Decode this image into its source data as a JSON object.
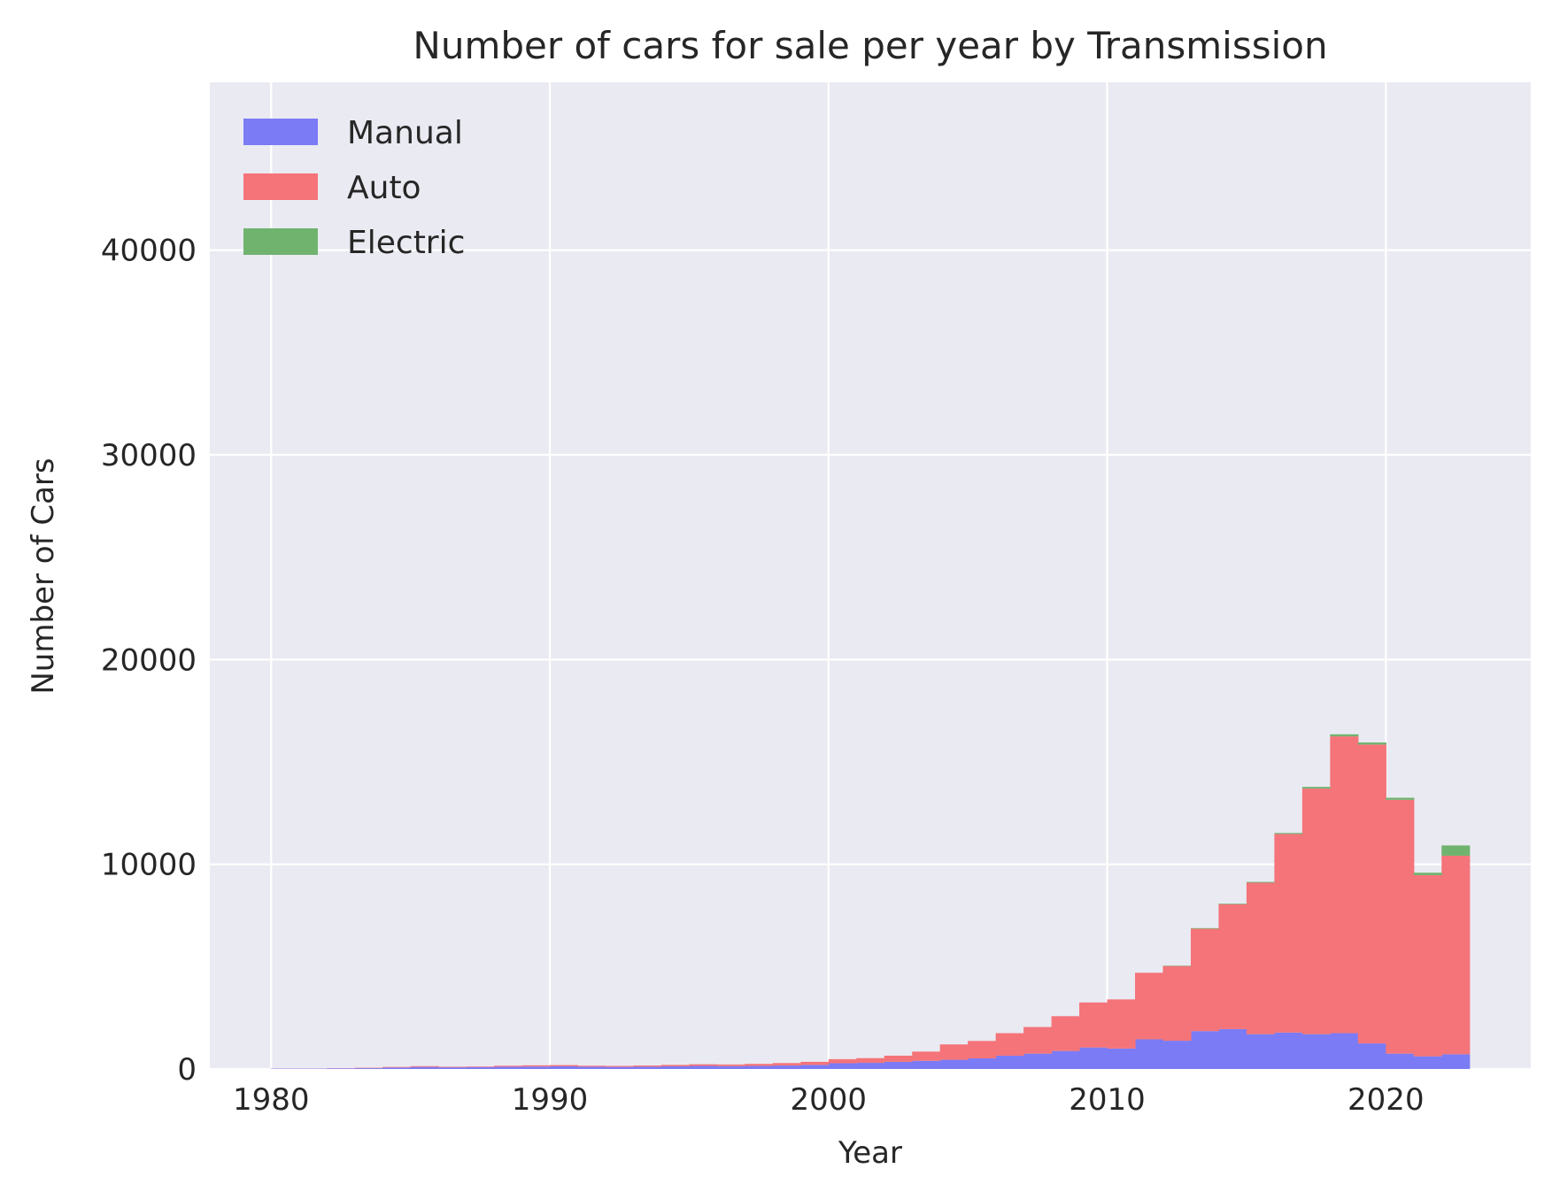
{
  "chart_data": {
    "type": "bar",
    "stacked": true,
    "histogram": true,
    "title": "Number of cars for sale per year by Transmission",
    "xlabel": "Year",
    "ylabel": "Number of Cars",
    "xlim": [
      1977.8,
      2025.2
    ],
    "ylim": [
      0,
      48200
    ],
    "xticks": [
      1980,
      1990,
      2000,
      2010,
      2020
    ],
    "yticks": [
      0,
      10000,
      20000,
      30000,
      40000
    ],
    "grid": true,
    "legend_position": "top-left",
    "bins": [
      1980,
      1981,
      1982,
      1983,
      1984,
      1985,
      1986,
      1987,
      1988,
      1989,
      1990,
      1991,
      1992,
      1993,
      1994,
      1995,
      1996,
      1997,
      1998,
      1999,
      2000,
      2001,
      2002,
      2003,
      2004,
      2005,
      2006,
      2007,
      2008,
      2009,
      2010,
      2011,
      2012,
      2013,
      2014,
      2015,
      2016,
      2017,
      2018,
      2019,
      2020,
      2021,
      2022
    ],
    "series": [
      {
        "name": "Manual",
        "color": "#7b7bf5",
        "values": [
          20,
          20,
          30,
          40,
          70,
          100,
          80,
          90,
          110,
          120,
          130,
          110,
          100,
          110,
          130,
          150,
          140,
          150,
          170,
          200,
          280,
          300,
          350,
          400,
          450,
          520,
          650,
          750,
          880,
          1050,
          1000,
          1450,
          1380,
          1850,
          1950,
          1700,
          1780,
          1700,
          1750,
          1250,
          750,
          620,
          720
        ]
      },
      {
        "name": "Auto",
        "color": "#f47479",
        "values": [
          5,
          5,
          10,
          20,
          30,
          40,
          30,
          30,
          50,
          60,
          60,
          50,
          50,
          60,
          70,
          80,
          80,
          100,
          120,
          150,
          200,
          230,
          300,
          450,
          750,
          850,
          1100,
          1300,
          1700,
          2200,
          2400,
          3250,
          3650,
          5000,
          6100,
          7400,
          9700,
          12000,
          14500,
          14600,
          12400,
          8850,
          9700
        ]
      },
      {
        "name": "Electric",
        "color": "#6fb36f",
        "values": [
          0,
          0,
          0,
          0,
          0,
          0,
          0,
          0,
          0,
          0,
          0,
          0,
          0,
          0,
          0,
          0,
          0,
          0,
          0,
          0,
          0,
          0,
          0,
          0,
          0,
          0,
          0,
          0,
          0,
          0,
          0,
          0,
          20,
          30,
          30,
          40,
          50,
          80,
          100,
          100,
          100,
          120,
          500
        ]
      }
    ]
  },
  "colors": {
    "plot_background": "#eaeaf2",
    "grid": "#ffffff"
  }
}
